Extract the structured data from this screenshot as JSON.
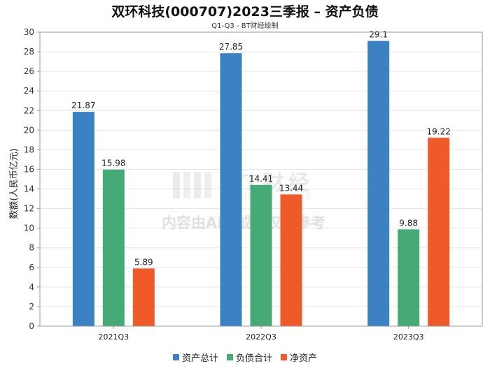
{
  "chart_data": {
    "type": "bar",
    "title": "双环科技(000707)2023三季报 – 资产负债",
    "subtitle": "Q1-Q3 - BT财经绘制",
    "ylabel": "数额(人民币亿元)",
    "xlabel": "",
    "categories": [
      "2021Q3",
      "2022Q3",
      "2023Q3"
    ],
    "series": [
      {
        "name": "资产总计",
        "color": "#3a82c4",
        "values": [
          21.87,
          27.85,
          29.1
        ],
        "labels": [
          "21.87",
          "27.85",
          "29.1"
        ]
      },
      {
        "name": "负债合计",
        "color": "#45aa75",
        "values": [
          15.98,
          14.41,
          9.88
        ],
        "labels": [
          "15.98",
          "14.41",
          "9.88"
        ]
      },
      {
        "name": "净资产",
        "color": "#f05a2a",
        "values": [
          5.89,
          13.44,
          19.22
        ],
        "labels": [
          "5.89",
          "13.44",
          "19.22"
        ]
      }
    ],
    "ylim": [
      0,
      30
    ],
    "yticks": [
      0,
      2,
      4,
      6,
      8,
      10,
      12,
      14,
      16,
      18,
      20,
      22,
      24,
      26,
      28,
      30
    ],
    "grid": true,
    "legend": "bottom"
  },
  "watermark": {
    "logo_text": "BT财经",
    "logo_sub": "BUSINESS TIMES",
    "disclaimer": "内容由AI生成，仅供参考"
  }
}
